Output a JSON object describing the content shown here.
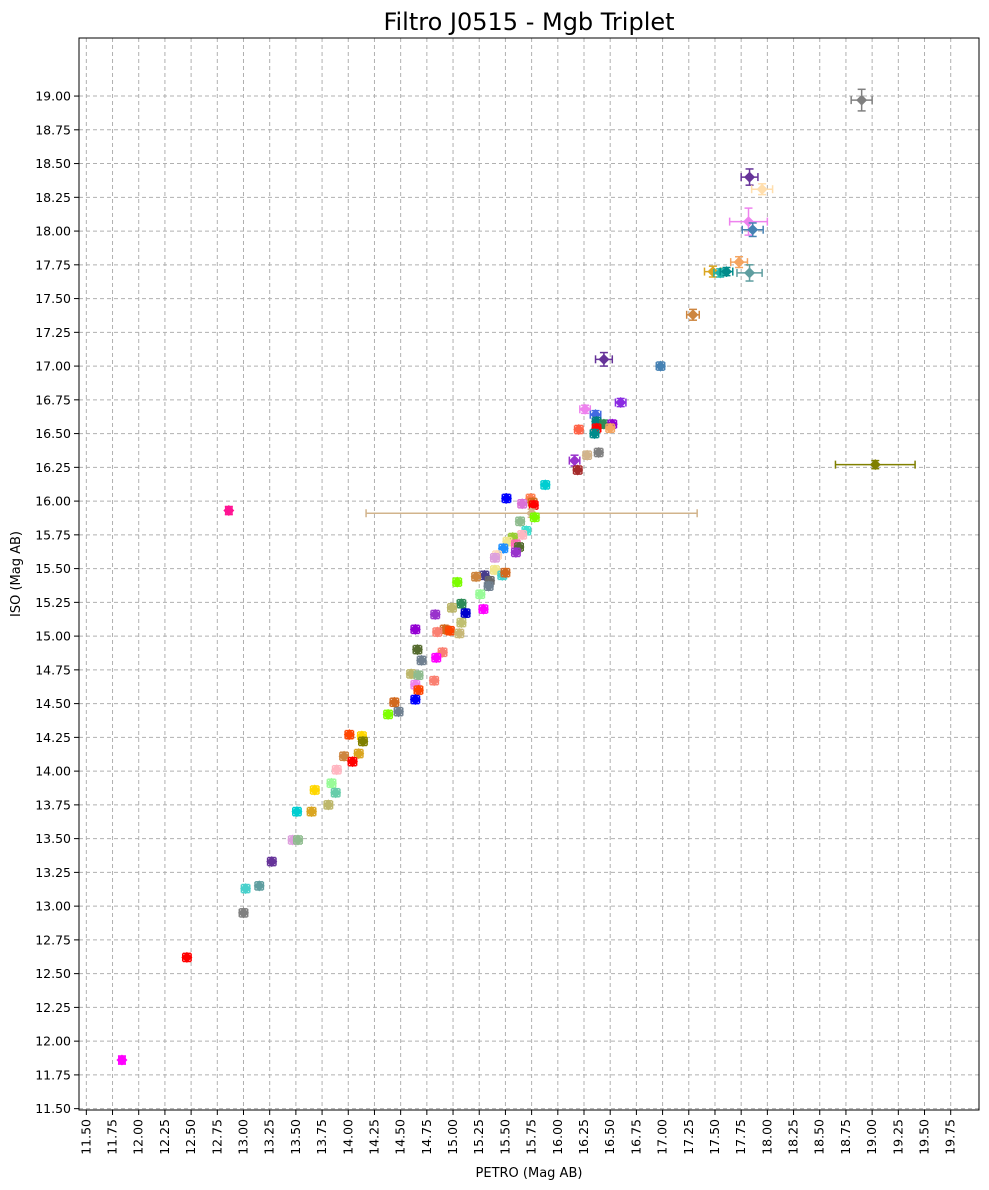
{
  "chart_data": {
    "type": "scatter",
    "title": "Filtro J0515 - Mgb Triplet",
    "xlabel": "PETRO (Mag AB)",
    "ylabel": "ISO (Mag AB)",
    "xlim": [
      11.43,
      20.02
    ],
    "ylim": [
      11.49,
      19.43
    ],
    "xticks": [
      "11.50",
      "11.75",
      "12.00",
      "12.25",
      "12.50",
      "12.75",
      "13.00",
      "13.25",
      "13.50",
      "13.75",
      "14.00",
      "14.25",
      "14.50",
      "14.75",
      "15.00",
      "15.25",
      "15.50",
      "15.75",
      "16.00",
      "16.25",
      "16.50",
      "16.75",
      "17.00",
      "17.25",
      "17.50",
      "17.75",
      "18.00",
      "18.25",
      "18.50",
      "18.75",
      "19.00",
      "19.25",
      "19.50",
      "19.75"
    ],
    "yticks": [
      "11.50",
      "11.75",
      "12.00",
      "12.25",
      "12.50",
      "12.75",
      "13.00",
      "13.25",
      "13.50",
      "13.75",
      "14.00",
      "14.25",
      "14.50",
      "14.75",
      "15.00",
      "15.25",
      "15.50",
      "15.75",
      "16.00",
      "16.25",
      "16.50",
      "16.75",
      "17.00",
      "17.25",
      "17.50",
      "17.75",
      "18.00",
      "18.25",
      "18.50",
      "18.75",
      "19.00"
    ],
    "grid": true,
    "marker": "diamond",
    "points": [
      {
        "x": 18.9,
        "y": 18.97,
        "xerr": 0.1,
        "yerr": 0.08,
        "color": "#808080"
      },
      {
        "x": 17.83,
        "y": 18.4,
        "xerr": 0.08,
        "yerr": 0.06,
        "color": "#663399"
      },
      {
        "x": 17.95,
        "y": 18.31,
        "xerr": 0.1,
        "yerr": 0.04,
        "color": "#ffdead"
      },
      {
        "x": 17.82,
        "y": 18.07,
        "xerr": 0.18,
        "yerr": 0.1,
        "color": "#ee82ee"
      },
      {
        "x": 17.86,
        "y": 18.01,
        "xerr": 0.1,
        "yerr": 0.05,
        "color": "#4682b4"
      },
      {
        "x": 17.73,
        "y": 17.77,
        "xerr": 0.08,
        "yerr": 0.04,
        "color": "#f4a460"
      },
      {
        "x": 17.48,
        "y": 17.7,
        "xerr": 0.08,
        "yerr": 0.04,
        "color": "#daa520"
      },
      {
        "x": 17.55,
        "y": 17.69,
        "xerr": 0.06,
        "yerr": 0.03,
        "color": "#20b2aa"
      },
      {
        "x": 17.61,
        "y": 17.7,
        "xerr": 0.06,
        "yerr": 0.03,
        "color": "#008b8b"
      },
      {
        "x": 17.83,
        "y": 17.69,
        "xerr": 0.12,
        "yerr": 0.06,
        "color": "#5f9ea0"
      },
      {
        "x": 17.29,
        "y": 17.38,
        "xerr": 0.06,
        "yerr": 0.04,
        "color": "#cd853f"
      },
      {
        "x": 16.44,
        "y": 17.05,
        "xerr": 0.08,
        "yerr": 0.05,
        "color": "#663399"
      },
      {
        "x": 16.98,
        "y": 17.0,
        "xerr": 0.04,
        "yerr": 0.03,
        "color": "#4682b4"
      },
      {
        "x": 16.6,
        "y": 16.73,
        "xerr": 0.05,
        "yerr": 0.03,
        "color": "#8a2be2"
      },
      {
        "x": 16.26,
        "y": 16.68,
        "xerr": 0.05,
        "yerr": 0.03,
        "color": "#ee82ee"
      },
      {
        "x": 16.36,
        "y": 16.64,
        "xerr": 0.05,
        "yerr": 0.03,
        "color": "#4169e1"
      },
      {
        "x": 16.37,
        "y": 16.59,
        "xerr": 0.04,
        "yerr": 0.03,
        "color": "#008080"
      },
      {
        "x": 16.44,
        "y": 16.57,
        "xerr": 0.04,
        "yerr": 0.03,
        "color": "#2e8b57"
      },
      {
        "x": 16.52,
        "y": 16.57,
        "xerr": 0.04,
        "yerr": 0.03,
        "color": "#9400d3"
      },
      {
        "x": 16.5,
        "y": 16.54,
        "xerr": 0.04,
        "yerr": 0.03,
        "color": "#f4a460"
      },
      {
        "x": 16.37,
        "y": 16.54,
        "xerr": 0.04,
        "yerr": 0.03,
        "color": "#ff0000"
      },
      {
        "x": 16.2,
        "y": 16.53,
        "xerr": 0.04,
        "yerr": 0.03,
        "color": "#ff6347"
      },
      {
        "x": 16.35,
        "y": 16.5,
        "xerr": 0.04,
        "yerr": 0.03,
        "color": "#008b8b"
      },
      {
        "x": 16.39,
        "y": 16.36,
        "xerr": 0.04,
        "yerr": 0.03,
        "color": "#808080"
      },
      {
        "x": 16.28,
        "y": 16.34,
        "xerr": 0.04,
        "yerr": 0.03,
        "color": "#d2b48c"
      },
      {
        "x": 16.16,
        "y": 16.3,
        "xerr": 0.05,
        "yerr": 0.04,
        "color": "#9932cc"
      },
      {
        "x": 16.19,
        "y": 16.23,
        "xerr": 0.04,
        "yerr": 0.03,
        "color": "#a52a2a"
      },
      {
        "x": 19.03,
        "y": 16.27,
        "xerr": 0.38,
        "yerr": 0.03,
        "color": "#808000"
      },
      {
        "x": 15.88,
        "y": 16.12,
        "xerr": 0.04,
        "yerr": 0.03,
        "color": "#00ced1"
      },
      {
        "x": 15.51,
        "y": 16.02,
        "xerr": 0.04,
        "yerr": 0.03,
        "color": "#0000ff"
      },
      {
        "x": 12.86,
        "y": 15.93,
        "xerr": 0.03,
        "yerr": 0.03,
        "color": "#ff1493"
      },
      {
        "x": 15.74,
        "y": 16.02,
        "xerr": 0.04,
        "yerr": 0.03,
        "color": "#ff7f50"
      },
      {
        "x": 15.76,
        "y": 15.99,
        "xerr": 0.04,
        "yerr": 0.03,
        "color": "#d2691e"
      },
      {
        "x": 15.77,
        "y": 15.97,
        "xerr": 0.04,
        "yerr": 0.03,
        "color": "#ff0000"
      },
      {
        "x": 15.66,
        "y": 15.98,
        "xerr": 0.04,
        "yerr": 0.03,
        "color": "#da70d6"
      },
      {
        "x": 15.75,
        "y": 15.91,
        "xerr": 1.58,
        "yerr": 0.03,
        "color": "#d2b48c"
      },
      {
        "x": 15.78,
        "y": 15.88,
        "xerr": 0.04,
        "yerr": 0.03,
        "color": "#7cfc00"
      },
      {
        "x": 15.64,
        "y": 15.85,
        "xerr": 0.04,
        "yerr": 0.03,
        "color": "#8fbc8f"
      },
      {
        "x": 15.7,
        "y": 15.78,
        "xerr": 0.04,
        "yerr": 0.03,
        "color": "#40e0d0"
      },
      {
        "x": 15.66,
        "y": 15.75,
        "xerr": 0.04,
        "yerr": 0.03,
        "color": "#ffb6c1"
      },
      {
        "x": 15.57,
        "y": 15.73,
        "xerr": 0.04,
        "yerr": 0.03,
        "color": "#9acd32"
      },
      {
        "x": 15.52,
        "y": 15.7,
        "xerr": 0.04,
        "yerr": 0.03,
        "color": "#f0e68c"
      },
      {
        "x": 15.6,
        "y": 15.68,
        "xerr": 0.04,
        "yerr": 0.03,
        "color": "#ff69b4"
      },
      {
        "x": 15.63,
        "y": 15.66,
        "xerr": 0.04,
        "yerr": 0.03,
        "color": "#556b2f"
      },
      {
        "x": 15.6,
        "y": 15.62,
        "xerr": 0.04,
        "yerr": 0.03,
        "color": "#9932cc"
      },
      {
        "x": 15.48,
        "y": 15.65,
        "xerr": 0.04,
        "yerr": 0.03,
        "color": "#1e90ff"
      },
      {
        "x": 15.42,
        "y": 15.6,
        "xerr": 0.04,
        "yerr": 0.03,
        "color": "#ffdab9"
      },
      {
        "x": 15.4,
        "y": 15.58,
        "xerr": 0.04,
        "yerr": 0.03,
        "color": "#dda0dd"
      },
      {
        "x": 15.4,
        "y": 15.49,
        "xerr": 0.04,
        "yerr": 0.03,
        "color": "#f0e68c"
      },
      {
        "x": 15.47,
        "y": 15.45,
        "xerr": 0.04,
        "yerr": 0.03,
        "color": "#48d1cc"
      },
      {
        "x": 15.5,
        "y": 15.47,
        "xerr": 0.04,
        "yerr": 0.03,
        "color": "#d2691e"
      },
      {
        "x": 15.3,
        "y": 15.45,
        "xerr": 0.04,
        "yerr": 0.03,
        "color": "#483d8b"
      },
      {
        "x": 15.22,
        "y": 15.44,
        "xerr": 0.04,
        "yerr": 0.03,
        "color": "#cd853f"
      },
      {
        "x": 15.35,
        "y": 15.41,
        "xerr": 0.04,
        "yerr": 0.03,
        "color": "#696969"
      },
      {
        "x": 15.04,
        "y": 15.4,
        "xerr": 0.04,
        "yerr": 0.03,
        "color": "#7cfc00"
      },
      {
        "x": 15.34,
        "y": 15.37,
        "xerr": 0.04,
        "yerr": 0.03,
        "color": "#708090"
      },
      {
        "x": 15.26,
        "y": 15.31,
        "xerr": 0.04,
        "yerr": 0.03,
        "color": "#98fb98"
      },
      {
        "x": 15.08,
        "y": 15.24,
        "xerr": 0.04,
        "yerr": 0.03,
        "color": "#2e8b57"
      },
      {
        "x": 14.99,
        "y": 15.21,
        "xerr": 0.04,
        "yerr": 0.03,
        "color": "#bdb76b"
      },
      {
        "x": 15.29,
        "y": 15.2,
        "xerr": 0.04,
        "yerr": 0.03,
        "color": "#ff00ff"
      },
      {
        "x": 15.12,
        "y": 15.17,
        "xerr": 0.04,
        "yerr": 0.03,
        "color": "#0000cd"
      },
      {
        "x": 14.83,
        "y": 15.16,
        "xerr": 0.04,
        "yerr": 0.03,
        "color": "#9932cc"
      },
      {
        "x": 15.08,
        "y": 15.1,
        "xerr": 0.04,
        "yerr": 0.03,
        "color": "#c0c070"
      },
      {
        "x": 14.64,
        "y": 15.05,
        "xerr": 0.04,
        "yerr": 0.03,
        "color": "#9400d3"
      },
      {
        "x": 14.92,
        "y": 15.05,
        "xerr": 0.04,
        "yerr": 0.03,
        "color": "#d2691e"
      },
      {
        "x": 14.97,
        "y": 15.04,
        "xerr": 0.04,
        "yerr": 0.03,
        "color": "#ff4500"
      },
      {
        "x": 14.85,
        "y": 15.03,
        "xerr": 0.04,
        "yerr": 0.03,
        "color": "#fa8072"
      },
      {
        "x": 15.06,
        "y": 15.02,
        "xerr": 0.04,
        "yerr": 0.03,
        "color": "#c8b878"
      },
      {
        "x": 14.66,
        "y": 14.9,
        "xerr": 0.04,
        "yerr": 0.03,
        "color": "#556b2f"
      },
      {
        "x": 14.9,
        "y": 14.88,
        "xerr": 0.04,
        "yerr": 0.03,
        "color": "#fa8072"
      },
      {
        "x": 14.84,
        "y": 14.84,
        "xerr": 0.04,
        "yerr": 0.03,
        "color": "#ff00ff"
      },
      {
        "x": 14.7,
        "y": 14.82,
        "xerr": 0.04,
        "yerr": 0.03,
        "color": "#708090"
      },
      {
        "x": 14.6,
        "y": 14.72,
        "xerr": 0.04,
        "yerr": 0.03,
        "color": "#bdb76b"
      },
      {
        "x": 14.67,
        "y": 14.71,
        "xerr": 0.04,
        "yerr": 0.03,
        "color": "#8fbc8f"
      },
      {
        "x": 14.82,
        "y": 14.67,
        "xerr": 0.04,
        "yerr": 0.03,
        "color": "#fa8072"
      },
      {
        "x": 14.64,
        "y": 14.64,
        "xerr": 0.04,
        "yerr": 0.03,
        "color": "#ee82ee"
      },
      {
        "x": 14.67,
        "y": 14.6,
        "xerr": 0.04,
        "yerr": 0.03,
        "color": "#ff4500"
      },
      {
        "x": 14.64,
        "y": 14.53,
        "xerr": 0.04,
        "yerr": 0.03,
        "color": "#0000ff"
      },
      {
        "x": 14.44,
        "y": 14.51,
        "xerr": 0.04,
        "yerr": 0.03,
        "color": "#d2691e"
      },
      {
        "x": 14.48,
        "y": 14.44,
        "xerr": 0.04,
        "yerr": 0.03,
        "color": "#708090"
      },
      {
        "x": 14.38,
        "y": 14.42,
        "xerr": 0.04,
        "yerr": 0.03,
        "color": "#7fff00"
      },
      {
        "x": 14.01,
        "y": 14.27,
        "xerr": 0.04,
        "yerr": 0.03,
        "color": "#ff4500"
      },
      {
        "x": 14.13,
        "y": 14.26,
        "xerr": 0.04,
        "yerr": 0.03,
        "color": "#ffd700"
      },
      {
        "x": 14.14,
        "y": 14.22,
        "xerr": 0.04,
        "yerr": 0.03,
        "color": "#808000"
      },
      {
        "x": 14.1,
        "y": 14.13,
        "xerr": 0.04,
        "yerr": 0.03,
        "color": "#daa520"
      },
      {
        "x": 13.96,
        "y": 14.11,
        "xerr": 0.04,
        "yerr": 0.03,
        "color": "#cd853f"
      },
      {
        "x": 14.04,
        "y": 14.07,
        "xerr": 0.04,
        "yerr": 0.03,
        "color": "#ff0000"
      },
      {
        "x": 13.89,
        "y": 14.01,
        "xerr": 0.04,
        "yerr": 0.03,
        "color": "#ffb6c1"
      },
      {
        "x": 13.84,
        "y": 13.91,
        "xerr": 0.04,
        "yerr": 0.03,
        "color": "#98fb98"
      },
      {
        "x": 13.88,
        "y": 13.84,
        "xerr": 0.04,
        "yerr": 0.03,
        "color": "#66cdaa"
      },
      {
        "x": 13.68,
        "y": 13.86,
        "xerr": 0.04,
        "yerr": 0.03,
        "color": "#ffd700"
      },
      {
        "x": 13.81,
        "y": 13.75,
        "xerr": 0.04,
        "yerr": 0.03,
        "color": "#bdb76b"
      },
      {
        "x": 13.51,
        "y": 13.7,
        "xerr": 0.04,
        "yerr": 0.03,
        "color": "#00ced1"
      },
      {
        "x": 13.65,
        "y": 13.7,
        "xerr": 0.04,
        "yerr": 0.03,
        "color": "#daa520"
      },
      {
        "x": 13.47,
        "y": 13.49,
        "xerr": 0.04,
        "yerr": 0.03,
        "color": "#dda0dd"
      },
      {
        "x": 13.52,
        "y": 13.49,
        "xerr": 0.04,
        "yerr": 0.03,
        "color": "#8fbc8f"
      },
      {
        "x": 13.27,
        "y": 13.33,
        "xerr": 0.04,
        "yerr": 0.03,
        "color": "#663399"
      },
      {
        "x": 13.15,
        "y": 13.15,
        "xerr": 0.04,
        "yerr": 0.03,
        "color": "#5f9ea0"
      },
      {
        "x": 13.02,
        "y": 13.13,
        "xerr": 0.04,
        "yerr": 0.03,
        "color": "#48d1cc"
      },
      {
        "x": 13.0,
        "y": 12.95,
        "xerr": 0.04,
        "yerr": 0.03,
        "color": "#808080"
      },
      {
        "x": 12.46,
        "y": 12.62,
        "xerr": 0.04,
        "yerr": 0.03,
        "color": "#ff0000"
      },
      {
        "x": 11.84,
        "y": 11.86,
        "xerr": 0.03,
        "yerr": 0.03,
        "color": "#ff00ff"
      }
    ]
  }
}
